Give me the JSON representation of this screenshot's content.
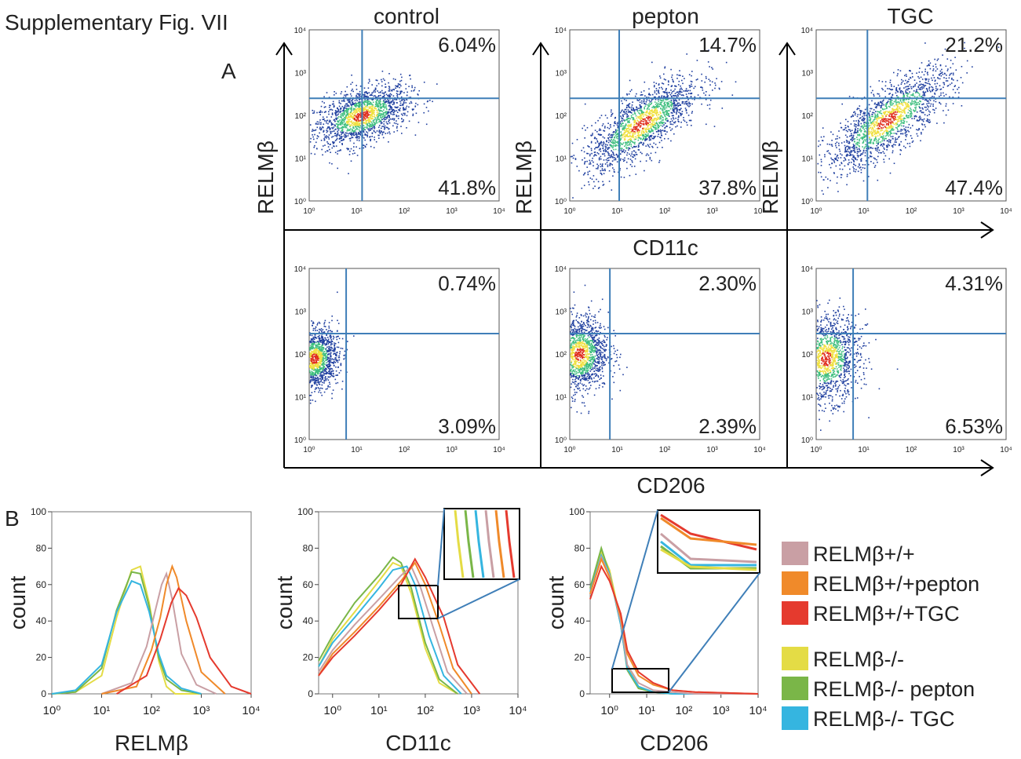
{
  "figure": {
    "title": "Supplementary  Fig. VII",
    "panel_a_label": "A",
    "panel_b_label": "B",
    "top_x_label": "CD11c",
    "bottom_x_label": "CD206",
    "row_y_label": "RELMβ",
    "column_headers": [
      "control",
      "pepton",
      "TGC"
    ],
    "flow_tick_labels": [
      "10⁰",
      "10¹",
      "10²",
      "10³",
      "10⁴"
    ]
  },
  "chart_data": [
    {
      "type": "scatter",
      "panel": "A-control-CD11c",
      "title": "control",
      "xlabel": "",
      "ylabel": "RELMβ",
      "xscale": "log",
      "yscale": "log",
      "xlim": [
        1,
        10000
      ],
      "ylim": [
        1,
        10000
      ],
      "gate": {
        "x": 13,
        "y": 250
      },
      "quadrants": {
        "upper_right": "6.04%",
        "lower_right": "41.8%"
      }
    },
    {
      "type": "scatter",
      "panel": "A-pepton-CD11c",
      "title": "pepton",
      "xlabel": "CD11c",
      "ylabel": "RELMβ",
      "xscale": "log",
      "yscale": "log",
      "xlim": [
        1,
        10000
      ],
      "ylim": [
        1,
        10000
      ],
      "gate": {
        "x": 11,
        "y": 250
      },
      "quadrants": {
        "upper_right": "14.7%",
        "lower_right": "37.8%"
      }
    },
    {
      "type": "scatter",
      "panel": "A-TGC-CD11c",
      "title": "TGC",
      "xlabel": "",
      "ylabel": "RELMβ",
      "xscale": "log",
      "yscale": "log",
      "xlim": [
        1,
        10000
      ],
      "ylim": [
        1,
        10000
      ],
      "gate": {
        "x": 12,
        "y": 250
      },
      "quadrants": {
        "upper_right": "21.2%",
        "lower_right": "47.4%"
      }
    },
    {
      "type": "scatter",
      "panel": "A-control-CD206",
      "xlabel": "",
      "ylabel": "",
      "xscale": "log",
      "yscale": "log",
      "xlim": [
        1,
        10000
      ],
      "ylim": [
        1,
        10000
      ],
      "gate": {
        "x": 6,
        "y": 300
      },
      "quadrants": {
        "upper_right": "0.74%",
        "lower_right": "3.09%"
      }
    },
    {
      "type": "scatter",
      "panel": "A-pepton-CD206",
      "xlabel": "CD206",
      "ylabel": "",
      "xscale": "log",
      "yscale": "log",
      "xlim": [
        1,
        10000
      ],
      "ylim": [
        1,
        10000
      ],
      "gate": {
        "x": 7,
        "y": 300
      },
      "quadrants": {
        "upper_right": "2.30%",
        "lower_right": "2.39%"
      }
    },
    {
      "type": "scatter",
      "panel": "A-TGC-CD206",
      "xlabel": "",
      "ylabel": "",
      "xscale": "log",
      "yscale": "log",
      "xlim": [
        1,
        10000
      ],
      "ylim": [
        1,
        10000
      ],
      "gate": {
        "x": 6,
        "y": 300
      },
      "quadrants": {
        "upper_right": "4.31%",
        "lower_right": "6.53%"
      }
    },
    {
      "type": "line",
      "panel": "B-RELMb",
      "xlabel": "RELMβ",
      "ylabel": "count",
      "xscale": "log",
      "xlim": [
        1,
        10000
      ],
      "ylim": [
        0,
        100
      ],
      "x_ticks": [
        "10⁰",
        "10¹",
        "10²",
        "10³",
        "10⁴"
      ],
      "y_ticks": [
        "0",
        "20",
        "40",
        "60",
        "80",
        "100"
      ],
      "series": [
        {
          "name": "RELMβ-/-",
          "color": "#e4dc45",
          "x": [
            1,
            3,
            10,
            20,
            40,
            60,
            90,
            140,
            200,
            300,
            1000
          ],
          "y": [
            0,
            1,
            10,
            42,
            68,
            70,
            50,
            18,
            4,
            0,
            0
          ]
        },
        {
          "name": "RELMβ-/-  pepton",
          "color": "#7ab648",
          "x": [
            1,
            3,
            10,
            20,
            40,
            60,
            90,
            140,
            200,
            400,
            1000
          ],
          "y": [
            0,
            1,
            14,
            46,
            67,
            66,
            48,
            20,
            8,
            2,
            0
          ]
        },
        {
          "name": "RELMβ-/-  TGC",
          "color": "#35b5e0",
          "x": [
            1,
            3,
            10,
            20,
            40,
            60,
            90,
            140,
            200,
            400,
            1000
          ],
          "y": [
            0,
            2,
            16,
            45,
            62,
            60,
            45,
            22,
            10,
            3,
            0
          ]
        },
        {
          "name": "RELMβ+/+",
          "color": "#c99fa4",
          "x": [
            10,
            40,
            80,
            120,
            160,
            200,
            260,
            400,
            800,
            2000
          ],
          "y": [
            0,
            6,
            26,
            46,
            60,
            66,
            52,
            22,
            5,
            0
          ]
        },
        {
          "name": "RELMβ+/+pepton",
          "color": "#f08a2a",
          "x": [
            10,
            50,
            100,
            150,
            200,
            260,
            320,
            500,
            1000,
            3000
          ],
          "y": [
            0,
            4,
            24,
            42,
            60,
            70,
            64,
            40,
            12,
            0
          ]
        },
        {
          "name": "RELMβ+/+TGC",
          "color": "#e53a2e",
          "x": [
            20,
            80,
            150,
            250,
            350,
            500,
            800,
            1500,
            4000,
            10000
          ],
          "y": [
            0,
            10,
            30,
            50,
            58,
            54,
            42,
            20,
            4,
            0
          ]
        }
      ]
    },
    {
      "type": "line",
      "panel": "B-CD11c",
      "xlabel": "CD11c",
      "ylabel": "count",
      "xscale": "log",
      "xlim": [
        0.5,
        10000
      ],
      "ylim": [
        0,
        100
      ],
      "x_ticks": [
        "10⁰",
        "10¹",
        "10²",
        "10³",
        "10⁴"
      ],
      "y_ticks": [
        "0",
        "20",
        "40",
        "60",
        "80",
        "100"
      ],
      "series": [
        {
          "name": "RELMβ-/-",
          "color": "#e4dc45",
          "x": [
            0.5,
            1,
            3,
            10,
            20,
            30,
            50,
            100,
            200,
            500
          ],
          "y": [
            15,
            30,
            45,
            62,
            72,
            70,
            55,
            25,
            6,
            0
          ]
        },
        {
          "name": "RELMβ-/-  pepton",
          "color": "#7ab648",
          "x": [
            0.5,
            1,
            3,
            10,
            20,
            30,
            50,
            100,
            200,
            500
          ],
          "y": [
            18,
            32,
            50,
            65,
            75,
            72,
            58,
            28,
            8,
            0
          ]
        },
        {
          "name": "RELMβ-/-  TGC",
          "color": "#35b5e0",
          "x": [
            0.5,
            1,
            3,
            10,
            20,
            40,
            60,
            120,
            250,
            600
          ],
          "y": [
            15,
            28,
            42,
            58,
            68,
            70,
            60,
            32,
            10,
            0
          ]
        },
        {
          "name": "RELMβ+/+",
          "color": "#c99fa4",
          "x": [
            0.5,
            1,
            3,
            10,
            30,
            50,
            80,
            150,
            300,
            800
          ],
          "y": [
            12,
            24,
            38,
            52,
            65,
            70,
            58,
            36,
            12,
            0
          ]
        },
        {
          "name": "RELMβ+/+pepton",
          "color": "#f08a2a",
          "x": [
            0.5,
            1,
            3,
            10,
            30,
            60,
            100,
            200,
            400,
            1000
          ],
          "y": [
            10,
            22,
            34,
            48,
            62,
            72,
            60,
            38,
            14,
            0
          ]
        },
        {
          "name": "RELMβ+/+TGC",
          "color": "#e53a2e",
          "x": [
            0.5,
            1,
            3,
            10,
            30,
            60,
            100,
            250,
            500,
            1500
          ],
          "y": [
            10,
            20,
            32,
            46,
            60,
            74,
            64,
            42,
            16,
            0
          ]
        }
      ]
    },
    {
      "type": "line",
      "panel": "B-CD206",
      "xlabel": "CD206",
      "ylabel": "count",
      "xscale": "log",
      "xlim": [
        0.3,
        10000
      ],
      "ylim": [
        0,
        100
      ],
      "x_ticks": [
        "10⁰",
        "10¹",
        "10²",
        "10³",
        "10⁴"
      ],
      "y_ticks": [
        "0",
        "20",
        "40",
        "60",
        "80",
        "100"
      ],
      "series": [
        {
          "name": "RELMβ-/-",
          "color": "#e4dc45",
          "x": [
            0.3,
            0.6,
            1,
            2,
            3,
            6,
            15,
            50,
            200,
            10000
          ],
          "y": [
            55,
            78,
            68,
            40,
            15,
            4,
            1,
            0,
            0,
            0
          ]
        },
        {
          "name": "RELMβ-/-  pepton",
          "color": "#7ab648",
          "x": [
            0.3,
            0.6,
            1,
            2,
            3,
            6,
            15,
            50,
            200,
            10000
          ],
          "y": [
            58,
            80,
            66,
            38,
            13,
            3,
            1,
            0,
            0,
            0
          ]
        },
        {
          "name": "RELMβ-/-  TGC",
          "color": "#35b5e0",
          "x": [
            0.3,
            0.6,
            1,
            2,
            3,
            6,
            15,
            50,
            200,
            10000
          ],
          "y": [
            56,
            76,
            66,
            38,
            14,
            4,
            1,
            0,
            0,
            0
          ]
        },
        {
          "name": "RELMβ+/+",
          "color": "#c99fa4",
          "x": [
            0.3,
            0.6,
            1,
            2,
            3,
            6,
            15,
            50,
            200,
            10000
          ],
          "y": [
            55,
            75,
            65,
            40,
            16,
            6,
            2,
            1,
            0,
            0
          ]
        },
        {
          "name": "RELMβ+/+pepton",
          "color": "#f08a2a",
          "x": [
            0.3,
            0.6,
            1,
            2,
            3,
            6,
            15,
            50,
            200,
            10000
          ],
          "y": [
            55,
            74,
            64,
            42,
            22,
            10,
            5,
            2,
            1,
            0
          ]
        },
        {
          "name": "RELMβ+/+TGC",
          "color": "#e53a2e",
          "x": [
            0.3,
            0.6,
            1,
            2,
            3,
            6,
            15,
            50,
            200,
            10000
          ],
          "y": [
            52,
            70,
            62,
            44,
            24,
            12,
            6,
            2,
            1,
            0
          ]
        }
      ]
    }
  ],
  "legend": {
    "items": [
      {
        "label": "RELMβ+/+",
        "color": "#c99fa4"
      },
      {
        "label": "RELMβ+/+pepton",
        "color": "#f08a2a"
      },
      {
        "label": "RELMβ+/+TGC",
        "color": "#e53a2e"
      },
      {
        "label": "RELMβ-/-",
        "color": "#e4dc45"
      },
      {
        "label": "RELMβ-/-  pepton",
        "color": "#7ab648"
      },
      {
        "label": "RELMβ-/-  TGC",
        "color": "#35b5e0"
      }
    ]
  },
  "colors": {
    "gate_line": "#3f7fb8",
    "axis": "#000000",
    "density_low": "#1f3f9f",
    "density_mid": "#3fbf7f",
    "density_high": "#f0e040",
    "density_peak": "#e03020"
  }
}
